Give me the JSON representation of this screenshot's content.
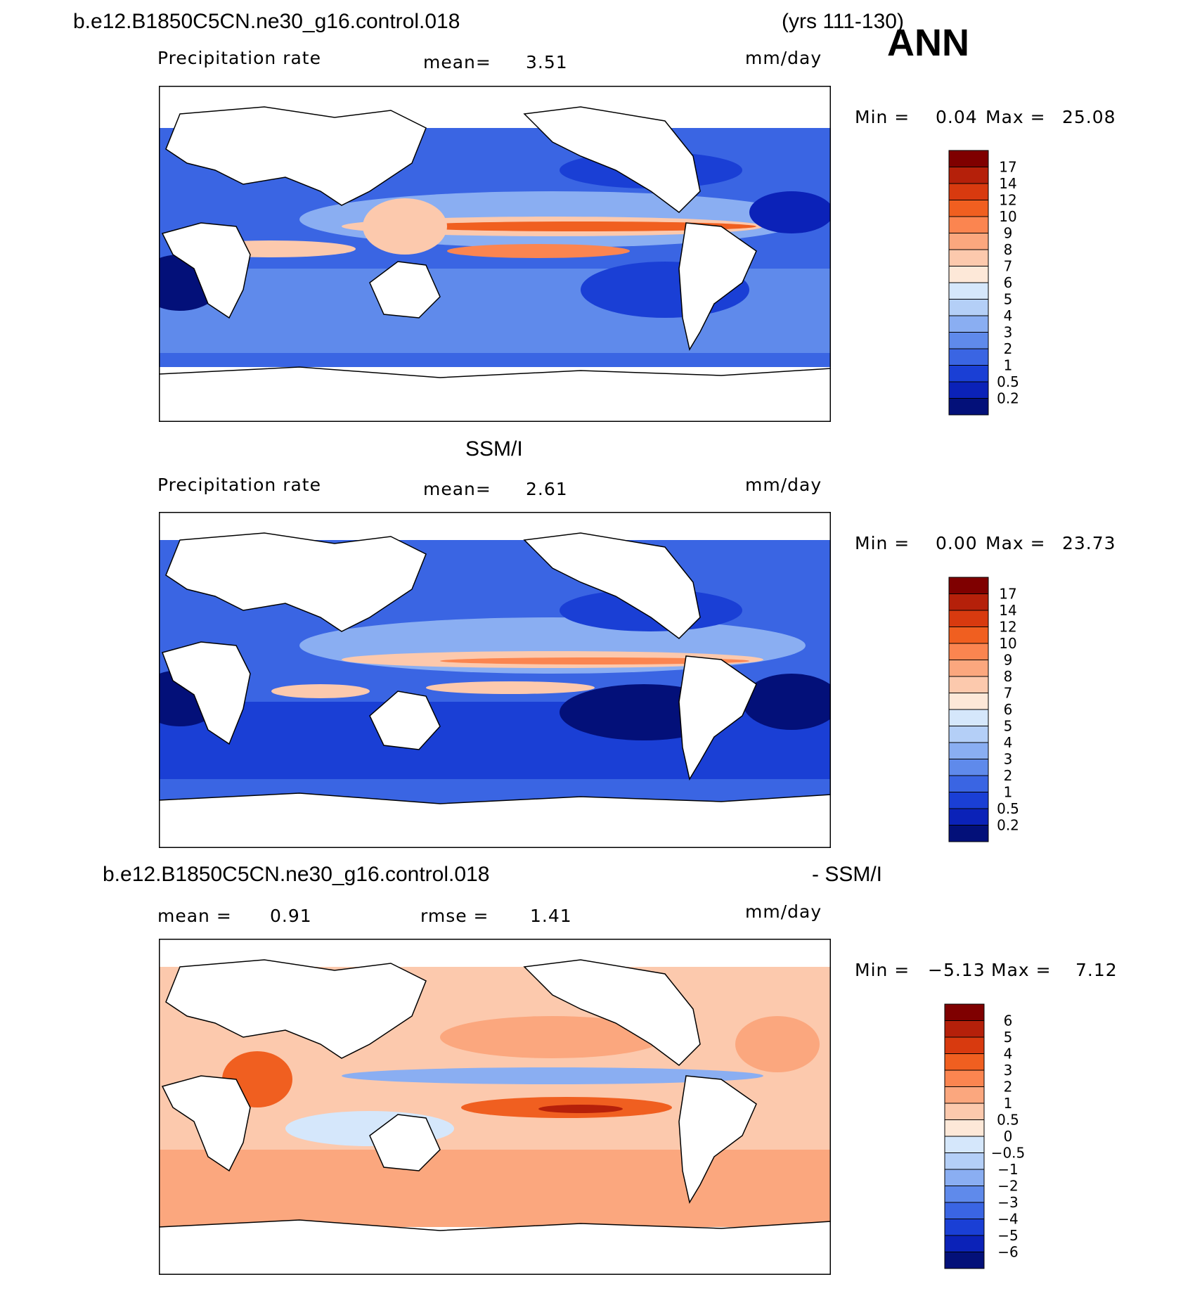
{
  "chart_data": [
    {
      "type": "heatmap",
      "title": "b.e12.B1850C5CN.ne30_g16.control.018",
      "years": "(yrs 111-130)",
      "season": "ANN",
      "variable": "Precipitation rate",
      "units": "mm/day",
      "mean_label": "mean=",
      "mean": "3.51",
      "min_label": "Min =",
      "min": "0.04",
      "max_label": "Max =",
      "max": "25.08",
      "colorbar": {
        "levels": [
          "17",
          "14",
          "12",
          "10",
          "9",
          "8",
          "7",
          "6",
          "5",
          "4",
          "3",
          "2",
          "1",
          "0.5",
          "0.2"
        ],
        "colors": [
          "#7f0000",
          "#b5200a",
          "#d83a0f",
          "#f05f20",
          "#fb8550",
          "#fba77e",
          "#fcc9ad",
          "#fde8d8",
          "#d5e7fb",
          "#b4cff7",
          "#8aaef2",
          "#5f8aeb",
          "#3a65e3",
          "#1a3fd5",
          "#0b22b8",
          "#031079"
        ]
      }
    },
    {
      "type": "heatmap",
      "title": "SSM/I",
      "variable": "Precipitation rate",
      "units": "mm/day",
      "mean_label": "mean=",
      "mean": "2.61",
      "min_label": "Min =",
      "min": "0.00",
      "max_label": "Max =",
      "max": "23.73",
      "colorbar": {
        "levels": [
          "17",
          "14",
          "12",
          "10",
          "9",
          "8",
          "7",
          "6",
          "5",
          "4",
          "3",
          "2",
          "1",
          "0.5",
          "0.2"
        ],
        "colors": [
          "#7f0000",
          "#b5200a",
          "#d83a0f",
          "#f05f20",
          "#fb8550",
          "#fba77e",
          "#fcc9ad",
          "#fde8d8",
          "#d5e7fb",
          "#b4cff7",
          "#8aaef2",
          "#5f8aeb",
          "#3a65e3",
          "#1a3fd5",
          "#0b22b8",
          "#031079"
        ]
      }
    },
    {
      "type": "heatmap",
      "title": "b.e12.B1850C5CN.ne30_g16.control.018",
      "title_suffix": "- SSM/I",
      "units": "mm/day",
      "mean_label": "mean =",
      "mean": "0.91",
      "rmse_label": "rmse =",
      "rmse": "1.41",
      "min_label": "Min =",
      "min": "−5.13",
      "max_label": "Max =",
      "max": "7.12",
      "colorbar": {
        "levels": [
          "6",
          "5",
          "4",
          "3",
          "2",
          "1",
          "0.5",
          "0",
          "−0.5",
          "−1",
          "−2",
          "−3",
          "−4",
          "−5",
          "−6"
        ],
        "colors": [
          "#7f0000",
          "#b5200a",
          "#d83a0f",
          "#f05f20",
          "#fb8550",
          "#fba77e",
          "#fcc9ad",
          "#fde8d8",
          "#d5e7fb",
          "#b4cff7",
          "#8aaef2",
          "#5f8aeb",
          "#3a65e3",
          "#1a3fd5",
          "#0b22b8",
          "#031079"
        ]
      }
    }
  ]
}
